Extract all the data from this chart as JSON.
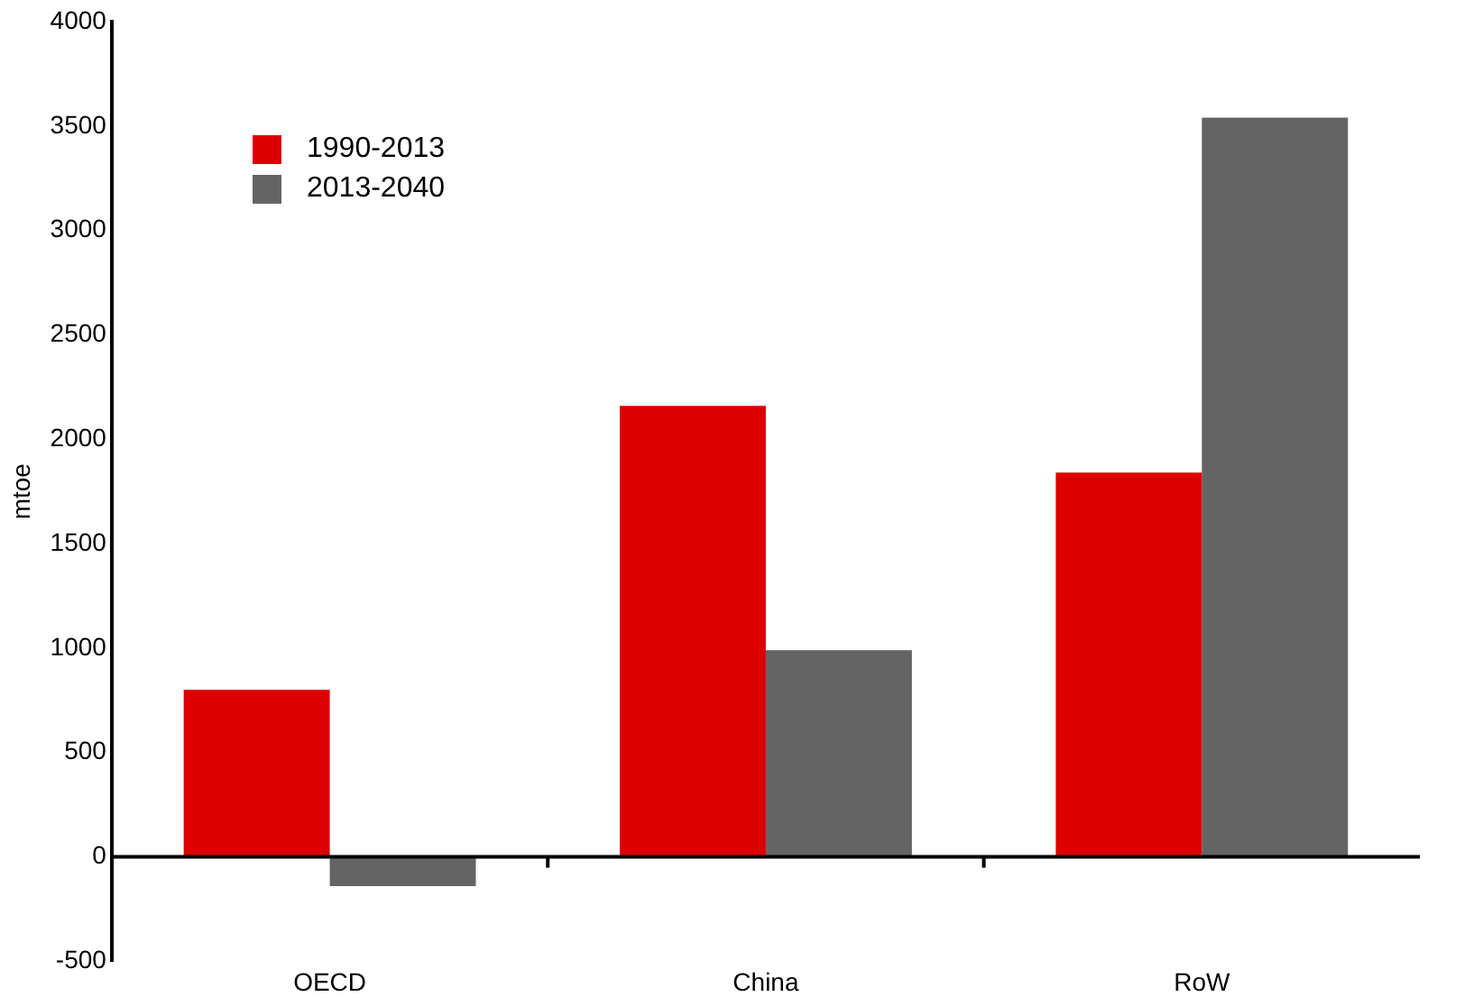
{
  "chart_data": {
    "type": "bar",
    "ylabel": "mtoe",
    "categories": [
      "OECD",
      "China",
      "RoW"
    ],
    "series": [
      {
        "name": "1990-2013",
        "color": "#dd0000",
        "values": [
          800,
          2160,
          1840
        ]
      },
      {
        "name": "2013-2040",
        "color": "#646464",
        "values": [
          -140,
          990,
          3540
        ]
      }
    ],
    "ylim": [
      -500,
      4000
    ],
    "yticks": [
      -500,
      0,
      500,
      1000,
      1500,
      2000,
      2500,
      3000,
      3500,
      4000
    ],
    "grid": false,
    "ref_lines": [
      {
        "axis": "y",
        "value": 0,
        "color": "#000000"
      }
    ],
    "legend": "top left"
  }
}
